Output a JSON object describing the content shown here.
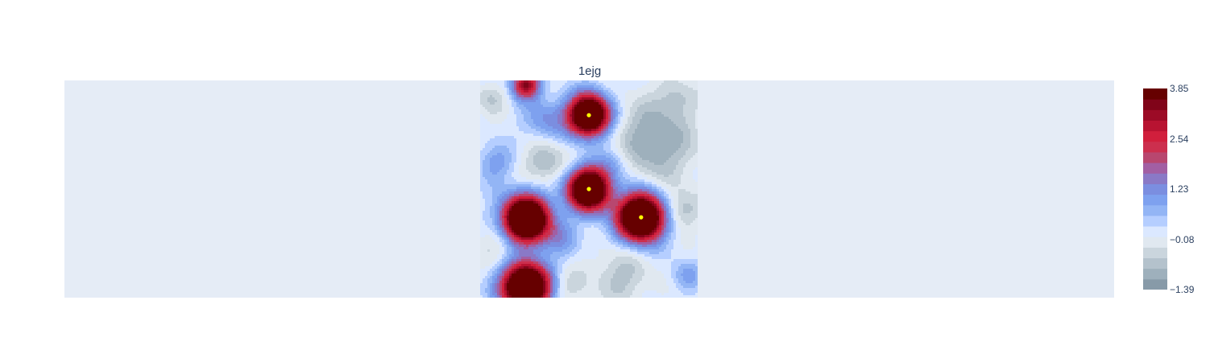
{
  "chart_data": {
    "type": "contour",
    "title": "1ejg",
    "xlabel": "",
    "ylabel": "",
    "colorbar": {
      "min": -1.39,
      "max": 3.85,
      "ticks": [
        3.85,
        2.54,
        1.23,
        -0.08,
        -1.39
      ],
      "tick_labels": [
        "3.85",
        "2.54",
        "1.23",
        "−0.08",
        "−1.39"
      ],
      "colors": [
        "#879aa8",
        "#9eb0bc",
        "#b4c2cc",
        "#cad5dd",
        "#e0e8f0",
        "#dbe8ff",
        "#b5ceff",
        "#93b5f5",
        "#7ea1ef",
        "#7b8ee0",
        "#8a79c6",
        "#a25fa3",
        "#b8476f",
        "#cc2f4e",
        "#d11f3c",
        "#b81331",
        "#9c0b26",
        "#800419",
        "#660000"
      ]
    },
    "markers": {
      "color": "#ffff00",
      "points": [
        [
          0.5,
          0.84
        ],
        [
          0.5,
          0.5
        ],
        [
          0.74,
          0.37
        ]
      ]
    },
    "peaks": [
      {
        "x": 0.21,
        "y": 0.36,
        "value": 3.85
      },
      {
        "x": 0.5,
        "y": 0.5,
        "value": 3.85
      },
      {
        "x": 0.5,
        "y": 0.84,
        "value": 3.85
      },
      {
        "x": 0.74,
        "y": 0.37,
        "value": 3.85
      },
      {
        "x": 0.21,
        "y": 0.05,
        "value": 3.85
      },
      {
        "x": 0.21,
        "y": 0.98,
        "value": 2.9
      }
    ]
  }
}
